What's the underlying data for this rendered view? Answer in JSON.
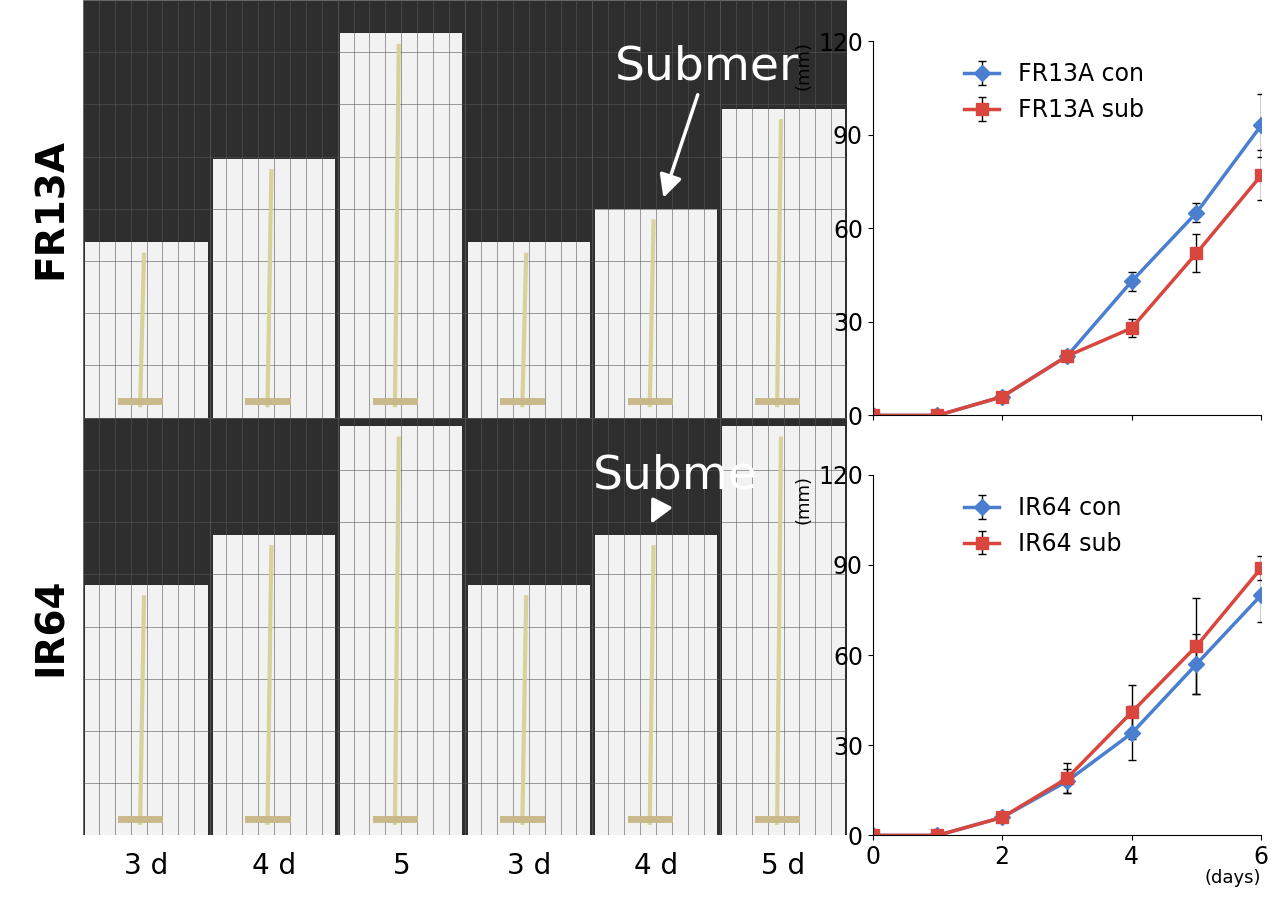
{
  "photo_panel": {
    "row_labels": [
      "FR13A",
      "IR64"
    ],
    "column_labels": [
      "3 d",
      "4 d",
      "5",
      "3 d",
      "4 d",
      "5 d"
    ],
    "annotations": [
      "Submer",
      "Subme"
    ]
  },
  "chart_data": [
    {
      "type": "line",
      "x": [
        0,
        1,
        2,
        3,
        4,
        5,
        6
      ],
      "xlim": [
        0,
        6
      ],
      "xticks": [
        0,
        2,
        4,
        6
      ],
      "ylim": [
        0,
        120
      ],
      "yticks": [
        0,
        30,
        60,
        90,
        120
      ],
      "ylabel": "(mm)",
      "tick_labels": "y",
      "legend": "upper left",
      "series": [
        {
          "name": "FR13A con",
          "color": "#4a7fd0",
          "marker": "diamond",
          "values": [
            0,
            0,
            6,
            19,
            43,
            65,
            93
          ],
          "errors": [
            0,
            0,
            1,
            1,
            3,
            3,
            10
          ]
        },
        {
          "name": "FR13A sub",
          "color": "#d9463e",
          "marker": "square",
          "values": [
            0,
            0,
            6,
            19,
            28,
            52,
            77
          ],
          "errors": [
            0,
            0,
            1,
            1,
            3,
            6,
            8
          ]
        }
      ]
    },
    {
      "type": "line",
      "x": [
        0,
        1,
        2,
        3,
        4,
        5,
        6
      ],
      "xlim": [
        0,
        6
      ],
      "xticks": [
        0,
        2,
        4,
        6
      ],
      "ylim": [
        0,
        120
      ],
      "yticks": [
        0,
        30,
        60,
        90,
        120
      ],
      "ylabel": "(mm)",
      "xlabel": "(days)",
      "legend": "upper left",
      "series": [
        {
          "name": "IR64 con",
          "color": "#4a7fd0",
          "marker": "diamond",
          "values": [
            0,
            0,
            6,
            18,
            34,
            57,
            80
          ],
          "errors": [
            0,
            0,
            1,
            4,
            9,
            10,
            9
          ]
        },
        {
          "name": "IR64 sub",
          "color": "#d9463e",
          "marker": "square",
          "values": [
            0,
            0,
            6,
            19,
            41,
            63,
            89
          ],
          "errors": [
            0,
            0,
            1,
            5,
            9,
            16,
            4
          ]
        }
      ]
    }
  ]
}
